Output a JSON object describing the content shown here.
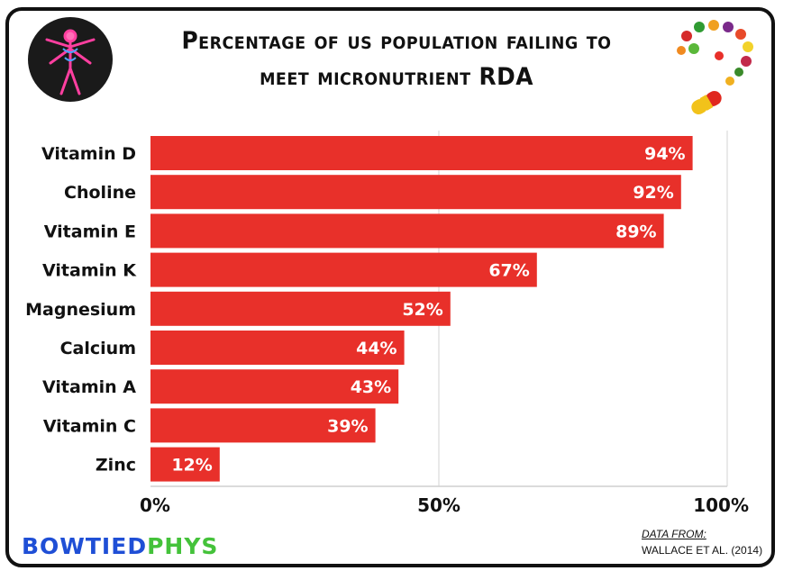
{
  "title_lines": [
    "Percentage of us population failing to",
    "meet micronutrient RDA"
  ],
  "chart_data": {
    "type": "bar",
    "orientation": "horizontal",
    "title": "Percentage of us population failing to meet micronutrient RDA",
    "categories": [
      "Vitamin D",
      "Choline",
      "Vitamin E",
      "Vitamin K",
      "Magnesium",
      "Calcium",
      "Vitamin A",
      "Vitamin C",
      "Zinc"
    ],
    "values": [
      94,
      92,
      89,
      67,
      52,
      44,
      43,
      39,
      12
    ],
    "value_labels": [
      "94%",
      "92%",
      "89%",
      "67%",
      "52%",
      "44%",
      "43%",
      "39%",
      "12%"
    ],
    "xlim": [
      0,
      100
    ],
    "xticks": [
      0,
      50,
      100
    ],
    "xtick_labels": [
      "0%",
      "50%",
      "100%"
    ],
    "grid": true,
    "bar_color": "#e8302a"
  },
  "brand": {
    "part1": "BOWTIED",
    "part2": "PHYS"
  },
  "source": {
    "heading": "DATA FROM:",
    "citation": "WALLACE ET AL. (2014)"
  },
  "colors": {
    "bar": "#e8302a",
    "brand_blue": "#1f4fd6",
    "brand_green": "#44c23a"
  }
}
